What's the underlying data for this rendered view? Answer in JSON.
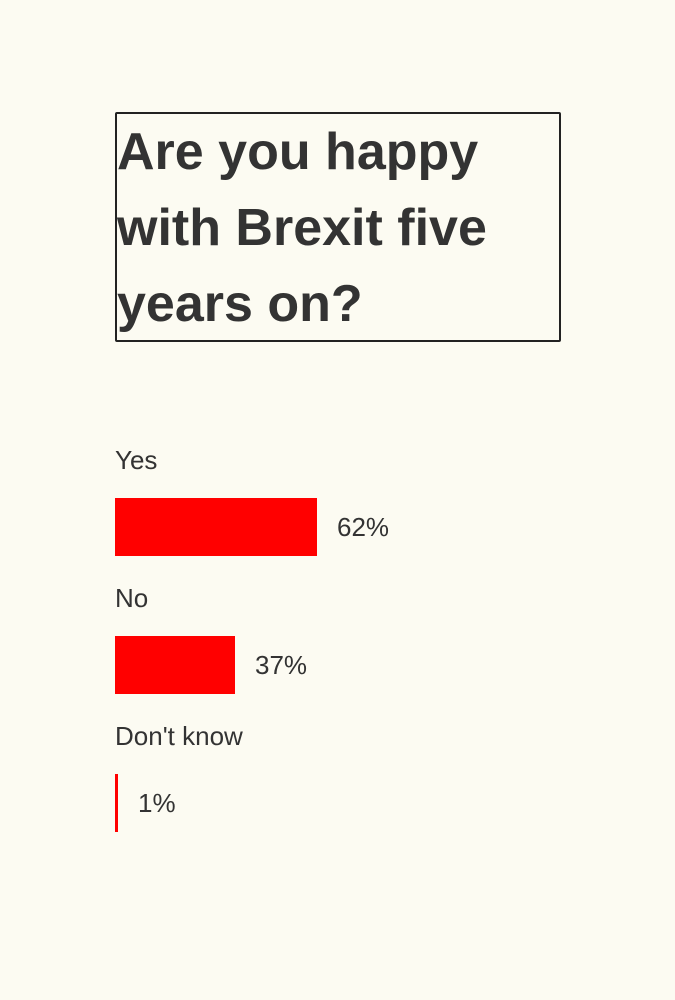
{
  "question": "Are you happy with Brexit five years on?",
  "colors": {
    "bar": "#ff0000",
    "text": "#333333",
    "background": "#fcfbf2"
  },
  "chart_data": {
    "type": "bar",
    "orientation": "horizontal",
    "title": "Are you happy with Brexit five years on?",
    "categories": [
      "Yes",
      "No",
      "Don't know"
    ],
    "values": [
      62,
      37,
      1
    ],
    "value_labels": [
      "62%",
      "37%",
      "1%"
    ],
    "unit": "%",
    "xlim": [
      0,
      100
    ],
    "grid": false,
    "legend": "none"
  }
}
